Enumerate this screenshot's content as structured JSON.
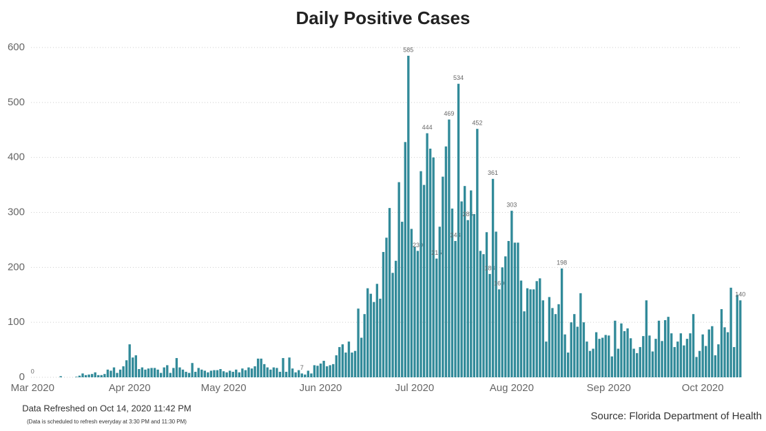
{
  "chart_data": {
    "type": "bar",
    "title": "Daily Positive Cases",
    "color": "#318a99",
    "grid": true,
    "values": [
      0,
      0,
      0,
      0,
      0,
      0,
      0,
      0,
      0,
      2,
      0,
      0,
      0,
      0,
      1,
      3,
      7,
      4,
      5,
      6,
      9,
      4,
      4,
      6,
      14,
      12,
      18,
      8,
      14,
      20,
      31,
      60,
      36,
      40,
      15,
      18,
      14,
      16,
      17,
      17,
      14,
      8,
      18,
      22,
      8,
      17,
      35,
      18,
      14,
      10,
      8,
      26,
      10,
      17,
      14,
      12,
      9,
      12,
      13,
      13,
      15,
      11,
      9,
      12,
      10,
      14,
      9,
      16,
      13,
      18,
      16,
      20,
      34,
      34,
      24,
      18,
      14,
      18,
      17,
      10,
      35,
      10,
      36,
      16,
      9,
      13,
      7,
      5,
      12,
      7,
      22,
      21,
      25,
      30,
      20,
      22,
      24,
      40,
      55,
      60,
      45,
      65,
      45,
      48,
      125,
      72,
      115,
      162,
      152,
      137,
      170,
      143,
      228,
      254,
      308,
      190,
      212,
      355,
      283,
      428,
      585,
      270,
      238,
      230,
      375,
      350,
      444,
      416,
      400,
      216,
      274,
      365,
      420,
      469,
      307,
      248,
      534,
      320,
      348,
      286,
      340,
      297,
      452,
      230,
      224,
      264,
      188,
      361,
      265,
      160,
      200,
      220,
      248,
      303,
      245,
      245,
      176,
      120,
      162,
      160,
      160,
      175,
      180,
      140,
      65,
      146,
      126,
      115,
      133,
      198,
      78,
      45,
      100,
      115,
      92,
      153,
      100,
      65,
      48,
      52,
      82,
      70,
      72,
      77,
      76,
      38,
      103,
      52,
      98,
      84,
      89,
      71,
      52,
      44,
      55,
      75,
      140,
      76,
      47,
      70,
      103,
      66,
      104,
      110,
      80,
      55,
      65,
      80,
      58,
      70,
      80,
      115,
      37,
      48,
      78,
      57,
      87,
      93,
      40,
      60,
      124,
      91,
      82,
      163,
      55,
      150,
      140
    ],
    "value_labels": [
      "0",
      null,
      null,
      null,
      null,
      null,
      null,
      null,
      null,
      null,
      null,
      null,
      null,
      null,
      null,
      null,
      null,
      null,
      null,
      null,
      null,
      null,
      null,
      null,
      null,
      null,
      null,
      null,
      null,
      null,
      null,
      null,
      null,
      null,
      null,
      null,
      null,
      null,
      null,
      null,
      null,
      null,
      null,
      null,
      null,
      null,
      null,
      null,
      null,
      null,
      null,
      null,
      null,
      null,
      null,
      null,
      null,
      null,
      null,
      null,
      null,
      null,
      null,
      null,
      null,
      null,
      null,
      null,
      null,
      null,
      null,
      null,
      null,
      null,
      null,
      null,
      null,
      null,
      null,
      null,
      null,
      null,
      null,
      null,
      null,
      null,
      "7",
      null,
      null,
      null,
      null,
      null,
      null,
      null,
      null,
      null,
      null,
      null,
      null,
      null,
      null,
      null,
      null,
      null,
      null,
      null,
      null,
      null,
      null,
      null,
      null,
      null,
      null,
      null,
      null,
      null,
      null,
      null,
      null,
      null,
      "585",
      null,
      null,
      "230",
      null,
      null,
      "444",
      null,
      null,
      "216",
      null,
      null,
      null,
      "469",
      null,
      "248",
      "534",
      null,
      null,
      "286",
      null,
      null,
      "452",
      null,
      null,
      null,
      "188",
      "361",
      null,
      "160",
      null,
      null,
      null,
      "303",
      null,
      null,
      null,
      null,
      null,
      null,
      null,
      null,
      null,
      null,
      null,
      null,
      null,
      null,
      null,
      "198",
      null,
      null,
      null,
      null,
      null,
      null,
      null,
      null,
      null,
      null,
      null,
      null,
      null,
      null,
      null,
      null,
      null,
      null,
      null,
      null,
      null,
      null,
      null,
      null,
      null,
      null,
      null,
      null,
      null,
      null,
      null,
      null,
      null,
      null,
      null,
      null,
      null,
      null,
      null,
      null,
      null,
      null,
      null,
      null,
      null,
      null,
      null,
      null,
      null,
      null,
      null,
      null,
      null,
      null,
      null,
      null,
      "140"
    ],
    "xlim": [
      -0.5,
      226.5
    ],
    "xticks": [
      {
        "value": 0,
        "label": "Mar 2020"
      },
      {
        "value": 31,
        "label": "Apr 2020"
      },
      {
        "value": 61,
        "label": "May 2020"
      },
      {
        "value": 92,
        "label": "Jun 2020"
      },
      {
        "value": 122,
        "label": "Jul 2020"
      },
      {
        "value": 153,
        "label": "Aug 2020"
      },
      {
        "value": 184,
        "label": "Sep 2020"
      },
      {
        "value": 214,
        "label": "Oct 2020"
      }
    ],
    "ylim": [
      0,
      600
    ],
    "yticks": [
      0,
      100,
      200,
      300,
      400,
      500,
      600
    ],
    "refreshed": "Data Refreshed on Oct 14, 2020 11:42 PM",
    "schedule": "(Data is scheduled to refresh everyday at 3:30 PM and 11:30 PM)",
    "source": "Source: Florida Department of Health"
  }
}
